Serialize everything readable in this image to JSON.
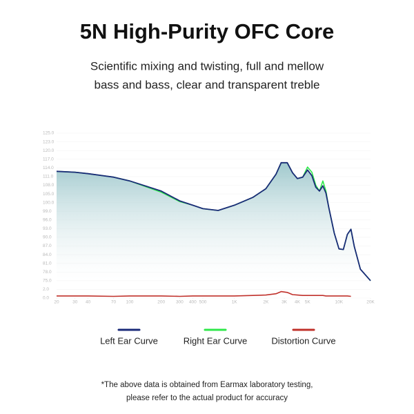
{
  "chart_data": {
    "type": "line",
    "title": "5N High-Purity OFC Core",
    "subtitle": [
      "Scientific mixing and twisting, full and mellow",
      "bass and bass, clear and transparent treble"
    ],
    "footnote": [
      "*The above data is obtained from Earmax laboratory testing,",
      "please refer to the actual product for accuracy"
    ],
    "x": [
      20,
      30,
      40,
      70,
      100,
      200,
      300,
      400,
      500,
      700,
      1000,
      1500,
      2000,
      2500,
      2800,
      3200,
      3600,
      4000,
      4500,
      5000,
      5500,
      6000,
      6500,
      7000,
      7500,
      8000,
      9000,
      10000,
      11000,
      12000,
      13000,
      14000,
      16000,
      20000
    ],
    "series": [
      {
        "name": "Left Ear Curve",
        "color": "#1a2a78",
        "values": [
          112.8,
          112.5,
          112,
          110.8,
          109.5,
          106,
          101,
          99.7,
          99.3,
          99.1,
          99.7,
          103,
          106.8,
          111.8,
          115.8,
          115.8,
          112.3,
          110.3,
          110.8,
          113.3,
          111.3,
          107.3,
          106,
          107.8,
          105.3,
          99.4,
          91.5,
          86,
          85.8,
          91,
          92.8,
          86.8,
          79,
          75
        ]
      },
      {
        "name": "Right Ear Curve",
        "color": "#2ee84a",
        "values": [
          112.8,
          112.5,
          112,
          110.8,
          109.5,
          105.6,
          100.6,
          99.7,
          99.3,
          99.1,
          99.7,
          103,
          106.8,
          111.8,
          115.8,
          115.8,
          112.3,
          110.3,
          110.8,
          114.3,
          112.5,
          108,
          106,
          109.5,
          106,
          99.4,
          91.5,
          86,
          85.8,
          91,
          92.8,
          86.8,
          79,
          75
        ]
      },
      {
        "name": "Distortion Curve",
        "color": "#c0302a",
        "values": [
          0.5,
          0.5,
          0.5,
          0.4,
          0.5,
          0.5,
          0.4,
          0.5,
          0.5,
          0.5,
          0.5,
          0.6,
          0.7,
          1.0,
          1.5,
          1.3,
          0.8,
          0.7,
          0.6,
          0.6,
          0.6,
          0.6,
          0.6,
          0.6,
          0.5,
          0.5,
          0.5,
          0.5,
          0.5,
          0.5,
          0.4,
          null,
          null,
          null
        ]
      }
    ],
    "xscale": "log",
    "xlim": [
      20,
      20000
    ],
    "xticks": [
      20,
      30,
      40,
      70,
      100,
      200,
      300,
      400,
      500,
      {
        "value": 1000,
        "label": "1K"
      },
      {
        "value": 2000,
        "label": "2K"
      },
      {
        "value": 3000,
        "label": "3K"
      },
      {
        "value": 4000,
        "label": "4K"
      },
      {
        "value": 5000,
        "label": "5K"
      },
      {
        "value": 10000,
        "label": "10K"
      },
      {
        "value": 20000,
        "label": "20K"
      }
    ],
    "ylim": [
      0,
      125
    ],
    "yticks": [
      {
        "value": 125,
        "label": "125.0"
      },
      {
        "value": 123,
        "label": "123.0"
      },
      {
        "value": 120,
        "label": "120.0"
      },
      {
        "value": 117,
        "label": "117.0"
      },
      {
        "value": 114,
        "label": "114.0"
      },
      {
        "value": 111,
        "label": "111.0"
      },
      {
        "value": 108,
        "label": "108.0"
      },
      {
        "value": 105,
        "label": "105.0"
      },
      {
        "value": 100,
        "label": "100.0"
      },
      {
        "value": 99,
        "label": "99.0"
      },
      {
        "value": 96,
        "label": "96.0"
      },
      {
        "value": 93,
        "label": "93.0"
      },
      {
        "value": 90,
        "label": "90.0"
      },
      {
        "value": 87,
        "label": "87.0"
      },
      {
        "value": 84,
        "label": "84.0"
      },
      {
        "value": 81,
        "label": "81.0"
      },
      {
        "value": 78,
        "label": "78.0"
      },
      {
        "value": 75,
        "label": "75.0"
      },
      {
        "value": 2,
        "label": "2.0"
      },
      {
        "value": 0,
        "label": "0.0"
      }
    ],
    "grid": true
  }
}
